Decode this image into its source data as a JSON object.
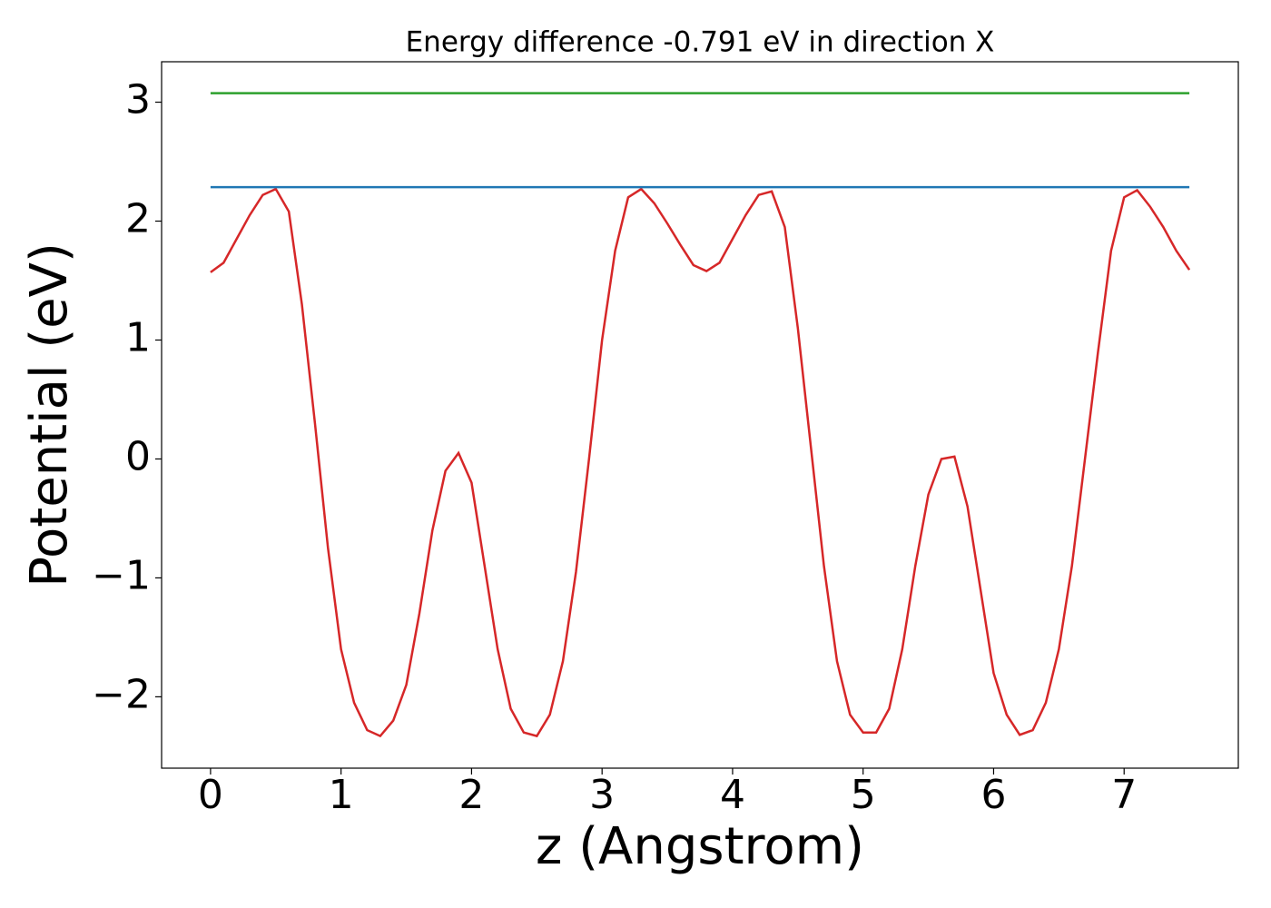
{
  "chart_data": {
    "type": "line",
    "title": "Energy difference -0.791 eV in direction X",
    "x_label": "z (Angstrom)",
    "y_label": "Potential (eV)",
    "xlim": [
      -0.375,
      7.875
    ],
    "ylim": [
      -2.6,
      3.34
    ],
    "xticks": [
      0,
      1,
      2,
      3,
      4,
      5,
      6,
      7
    ],
    "yticks": [
      {
        "value": -2,
        "label": "−2"
      },
      {
        "value": -1,
        "label": "−1"
      },
      0,
      1,
      2,
      3
    ],
    "grid": false,
    "series": [
      {
        "color": "#d62728",
        "x": [
          0,
          0.1,
          0.2,
          0.3,
          0.4,
          0.5,
          0.6,
          0.7,
          0.8,
          0.9,
          1.0,
          1.1,
          1.2,
          1.3,
          1.4,
          1.5,
          1.6,
          1.7,
          1.8,
          1.9,
          2.0,
          2.1,
          2.2,
          2.3,
          2.4,
          2.5,
          2.6,
          2.7,
          2.8,
          2.9,
          3.0,
          3.1,
          3.2,
          3.3,
          3.4,
          3.5,
          3.6,
          3.7,
          3.8,
          3.9,
          4.0,
          4.1,
          4.2,
          4.3,
          4.4,
          4.5,
          4.6,
          4.7,
          4.8,
          4.9,
          5.0,
          5.1,
          5.2,
          5.3,
          5.4,
          5.5,
          5.6,
          5.7,
          5.8,
          5.9,
          6.0,
          6.1,
          6.2,
          6.3,
          6.4,
          6.5,
          6.6,
          6.7,
          6.8,
          6.9,
          7.0,
          7.1,
          7.2,
          7.3,
          7.4,
          7.5
        ],
        "values": [
          1.57,
          1.65,
          1.85,
          2.05,
          2.22,
          2.27,
          2.08,
          1.3,
          0.3,
          -0.75,
          -1.6,
          -2.05,
          -2.28,
          -2.33,
          -2.2,
          -1.9,
          -1.3,
          -0.6,
          -0.1,
          0.05,
          -0.2,
          -0.9,
          -1.6,
          -2.1,
          -2.3,
          -2.33,
          -2.15,
          -1.7,
          -0.95,
          0.0,
          1.0,
          1.75,
          2.2,
          2.27,
          2.15,
          1.98,
          1.8,
          1.63,
          1.58,
          1.65,
          1.85,
          2.05,
          2.22,
          2.25,
          1.95,
          1.1,
          0.1,
          -0.9,
          -1.7,
          -2.15,
          -2.3,
          -2.3,
          -2.1,
          -1.6,
          -0.9,
          -0.3,
          0.0,
          0.02,
          -0.4,
          -1.1,
          -1.8,
          -2.15,
          -2.32,
          -2.28,
          -2.05,
          -1.6,
          -0.9,
          0.0,
          0.9,
          1.75,
          2.2,
          2.26,
          2.12,
          1.95,
          1.75,
          1.59
        ]
      },
      {
        "color": "#1f77b4",
        "x": [
          0,
          7.5
        ],
        "values": [
          2.285,
          2.285
        ]
      },
      {
        "color": "#2ca02c",
        "x": [
          0,
          7.5
        ],
        "values": [
          3.076,
          3.076
        ]
      }
    ]
  }
}
